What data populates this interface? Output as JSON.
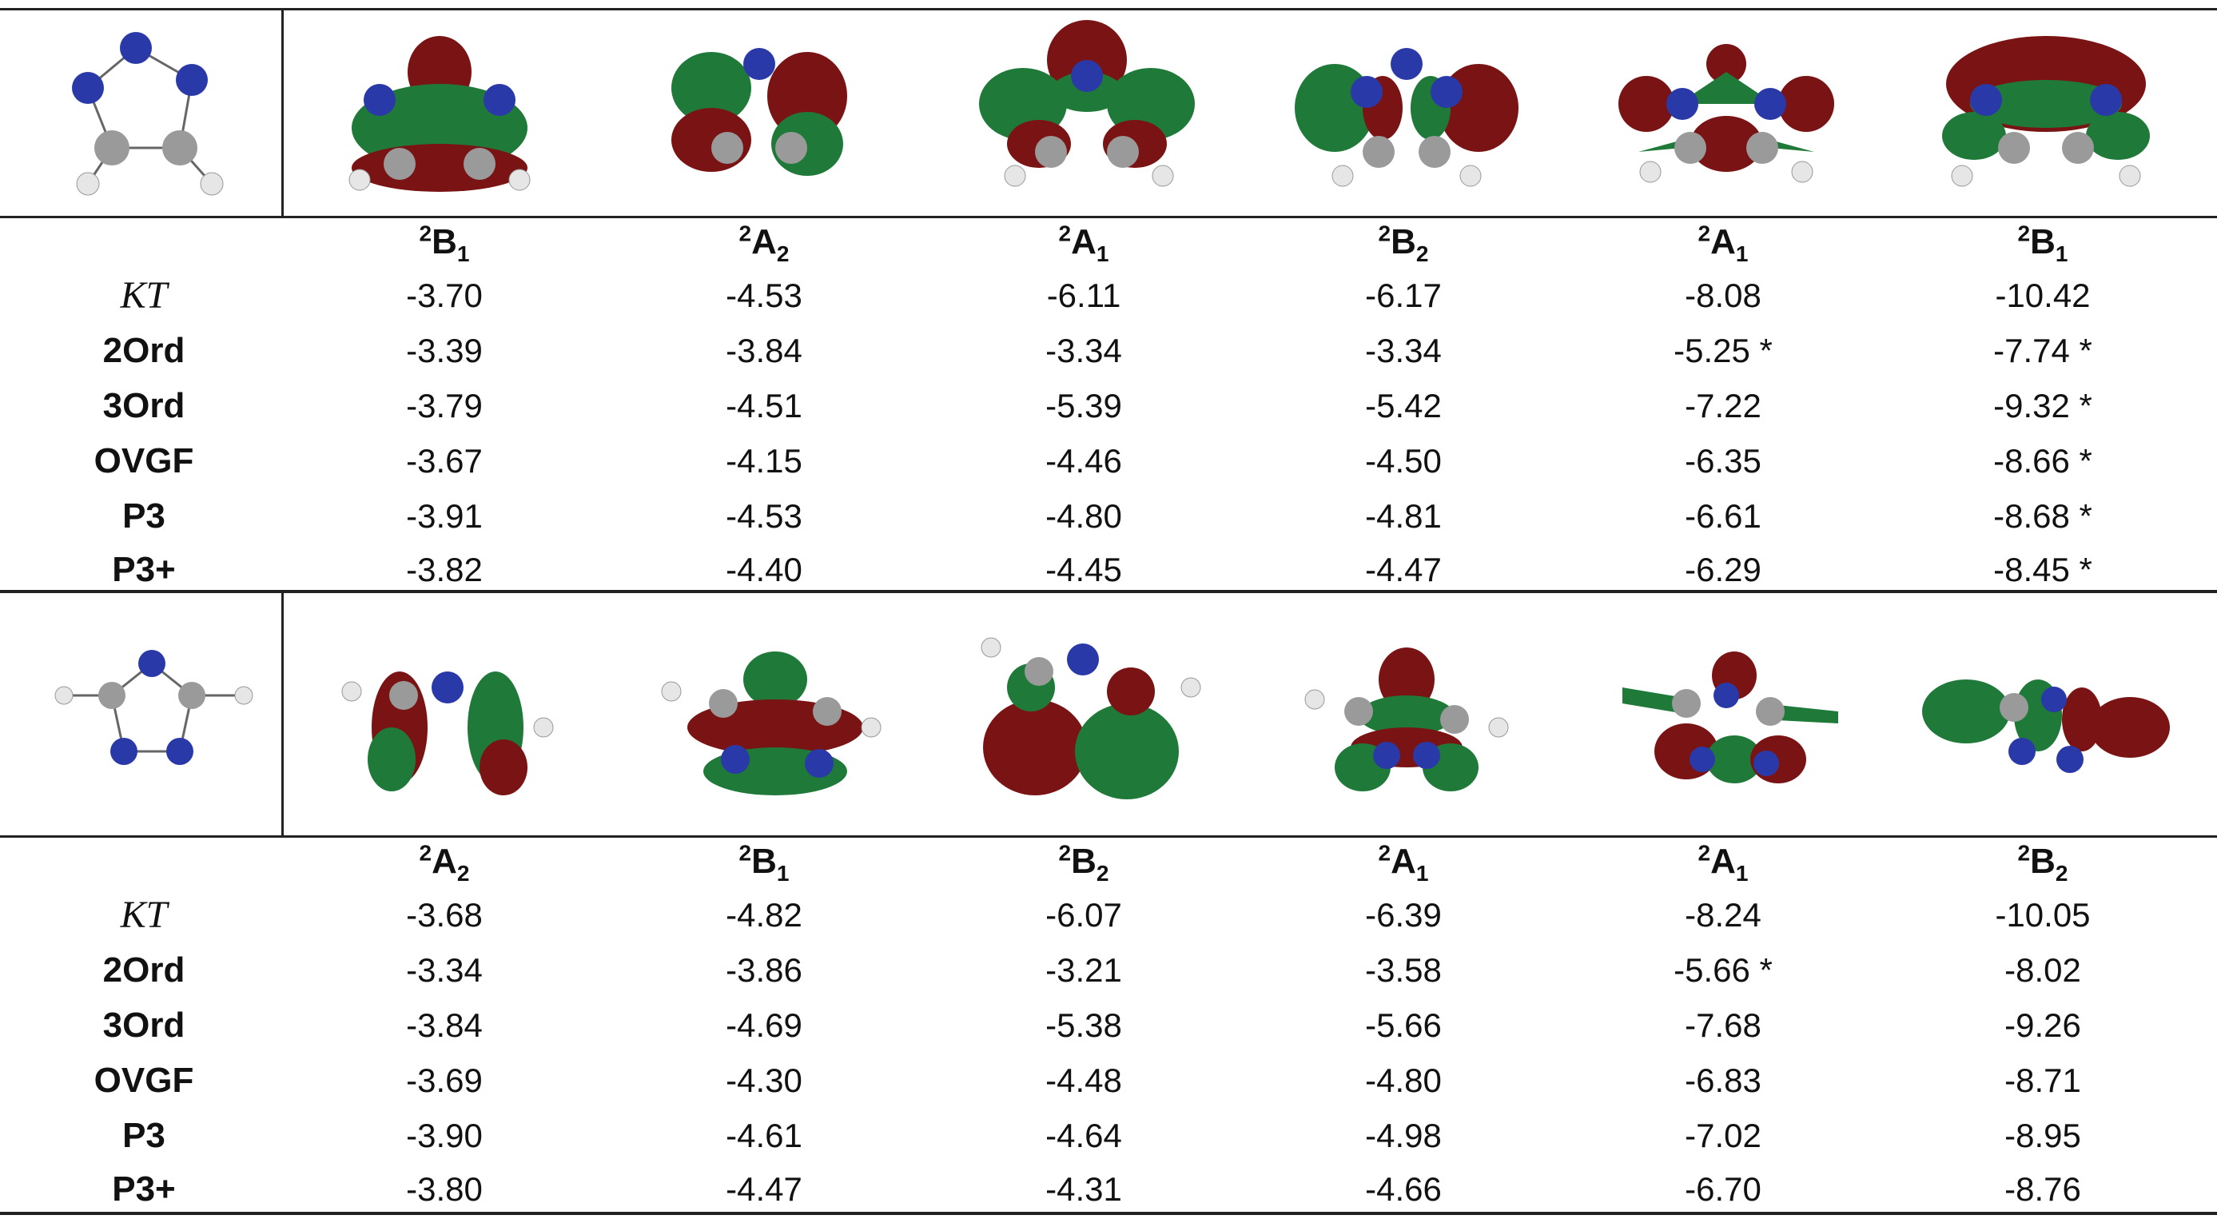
{
  "colors": {
    "nitrogen": "#2a39a8",
    "carbon": "#9a9a9a",
    "hydrogen": "#ececec",
    "lobe_red": "#7a1414",
    "lobe_green": "#1f7a3a"
  },
  "sections": [
    {
      "molecule": "1,2,3-triazole ring (three N top, two C-H bottom)",
      "symmetries": [
        {
          "sup": "2",
          "main": "B",
          "sub": "1"
        },
        {
          "sup": "2",
          "main": "A",
          "sub": "2"
        },
        {
          "sup": "2",
          "main": "A",
          "sub": "1"
        },
        {
          "sup": "2",
          "main": "B",
          "sub": "2"
        },
        {
          "sup": "2",
          "main": "A",
          "sub": "1"
        },
        {
          "sup": "2",
          "main": "B",
          "sub": "1"
        }
      ],
      "rows": [
        {
          "label": "KT",
          "style": "ital",
          "values": [
            "-3.70",
            "-4.53",
            "-6.11",
            "-6.17",
            "-8.08",
            "-10.42"
          ]
        },
        {
          "label": "2Ord",
          "style": "bold",
          "values": [
            "-3.39",
            "-3.84",
            "-3.34",
            "-3.34",
            "-5.25 *",
            "-7.74 *"
          ]
        },
        {
          "label": "3Ord",
          "style": "bold",
          "values": [
            "-3.79",
            "-4.51",
            "-5.39",
            "-5.42",
            "-7.22",
            "-9.32 *"
          ]
        },
        {
          "label": "OVGF",
          "style": "bold",
          "values": [
            "-3.67",
            "-4.15",
            "-4.46",
            "-4.50",
            "-6.35",
            "-8.66 *"
          ]
        },
        {
          "label": "P3",
          "style": "bold",
          "values": [
            "-3.91",
            "-4.53",
            "-4.80",
            "-4.81",
            "-6.61",
            "-8.68 *"
          ]
        },
        {
          "label": "P3+",
          "style": "bold",
          "values": [
            "-3.82",
            "-4.40",
            "-4.45",
            "-4.47",
            "-6.29",
            "-8.45 *"
          ]
        }
      ]
    },
    {
      "molecule": "1,2,4-triazole ring",
      "symmetries": [
        {
          "sup": "2",
          "main": "A",
          "sub": "2"
        },
        {
          "sup": "2",
          "main": "B",
          "sub": "1"
        },
        {
          "sup": "2",
          "main": "B",
          "sub": "2"
        },
        {
          "sup": "2",
          "main": "A",
          "sub": "1"
        },
        {
          "sup": "2",
          "main": "A",
          "sub": "1"
        },
        {
          "sup": "2",
          "main": "B",
          "sub": "2"
        }
      ],
      "rows": [
        {
          "label": "KT",
          "style": "ital",
          "values": [
            "-3.68",
            "-4.82",
            "-6.07",
            "-6.39",
            "-8.24",
            "-10.05"
          ]
        },
        {
          "label": "2Ord",
          "style": "bold",
          "values": [
            "-3.34",
            "-3.86",
            "-3.21",
            "-3.58",
            "-5.66 *",
            "-8.02"
          ]
        },
        {
          "label": "3Ord",
          "style": "bold",
          "values": [
            "-3.84",
            "-4.69",
            "-5.38",
            "-5.66",
            "-7.68",
            "-9.26"
          ]
        },
        {
          "label": "OVGF",
          "style": "bold",
          "values": [
            "-3.69",
            "-4.30",
            "-4.48",
            "-4.80",
            "-6.83",
            "-8.71"
          ]
        },
        {
          "label": "P3",
          "style": "bold",
          "values": [
            "-3.90",
            "-4.61",
            "-4.64",
            "-4.98",
            "-7.02",
            "-8.95"
          ]
        },
        {
          "label": "P3+",
          "style": "bold",
          "values": [
            "-3.80",
            "-4.47",
            "-4.31",
            "-4.66",
            "-6.70",
            "-8.76"
          ]
        }
      ]
    }
  ]
}
